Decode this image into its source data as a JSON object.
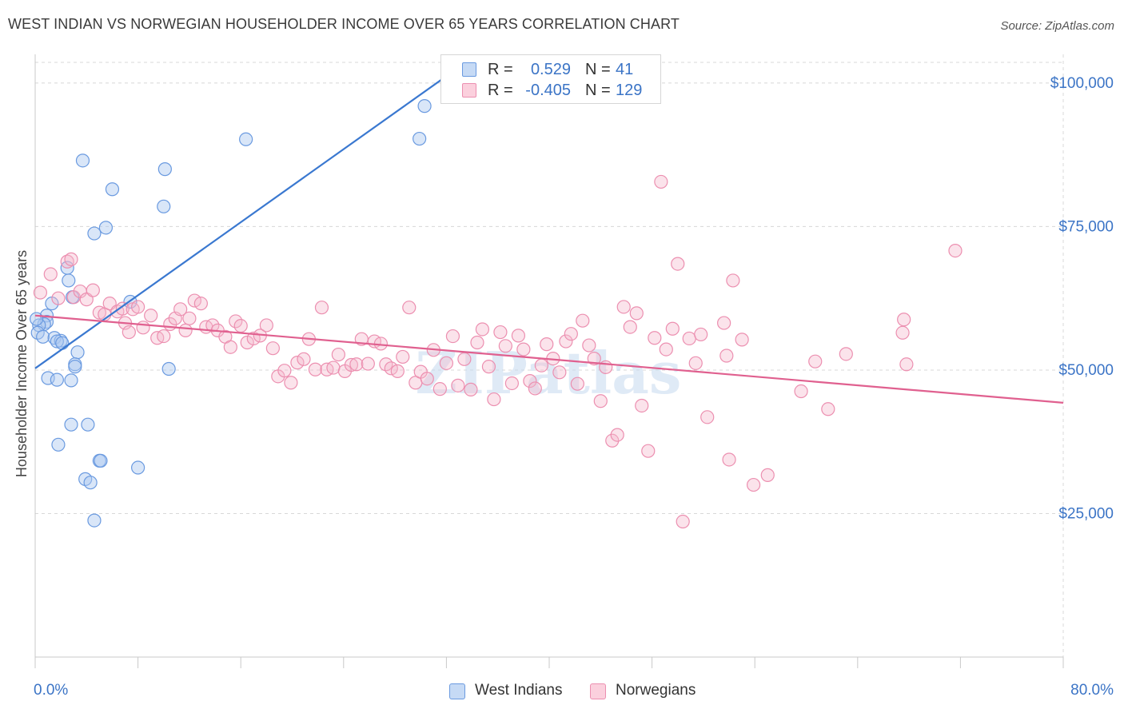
{
  "title": "WEST INDIAN VS NORWEGIAN HOUSEHOLDER INCOME OVER 65 YEARS CORRELATION CHART",
  "source": "Source: ZipAtlas.com",
  "watermark": "ZIPatlas",
  "colors": {
    "blue": "#3a78d0",
    "blue_fill": "#aac8f0",
    "pink": "#e0608f",
    "pink_fill": "#f5b8cc",
    "axis_text": "#3b74c6",
    "grid": "#d8d8d8"
  },
  "legend": {
    "r_label": "R =",
    "n_label": "N =",
    "rows": [
      {
        "r": "0.529",
        "n": "41"
      },
      {
        "r": "-0.405",
        "n": "129"
      }
    ]
  },
  "chart_data": {
    "type": "scatter",
    "title": "WEST INDIAN VS NORWEGIAN HOUSEHOLDER INCOME OVER 65 YEARS CORRELATION CHART",
    "xlabel": "",
    "ylabel": "Householder Income Over 65 years",
    "xlim": [
      0,
      80
    ],
    "ylim": [
      0,
      105000
    ],
    "x_tick_labels": [
      "0.0%",
      "80.0%"
    ],
    "y_ticks": [
      25000,
      50000,
      75000,
      100000
    ],
    "y_tick_labels": [
      "$25,000",
      "$50,000",
      "$75,000",
      "$100,000"
    ],
    "grid": true,
    "legend_position": "top-center",
    "series": [
      {
        "name": "West Indians",
        "r": 0.529,
        "n": 41,
        "trend": {
          "x": [
            0,
            32.5
          ],
          "y": [
            50300,
            102000
          ]
        },
        "points": [
          [
            30.3,
            96000
          ],
          [
            29.9,
            90300
          ],
          [
            16.4,
            90200
          ],
          [
            3.7,
            86500
          ],
          [
            10.1,
            85000
          ],
          [
            6.0,
            81500
          ],
          [
            10.0,
            78500
          ],
          [
            5.5,
            74800
          ],
          [
            4.6,
            73800
          ],
          [
            2.5,
            67800
          ],
          [
            2.6,
            65600
          ],
          [
            2.9,
            62700
          ],
          [
            1.3,
            61600
          ],
          [
            7.4,
            61900
          ],
          [
            0.9,
            59500
          ],
          [
            0.9,
            58400
          ],
          [
            0.7,
            58000
          ],
          [
            0.3,
            57800
          ],
          [
            0.2,
            56500
          ],
          [
            0.6,
            55800
          ],
          [
            1.5,
            55600
          ],
          [
            2.0,
            55100
          ],
          [
            1.7,
            55000
          ],
          [
            2.1,
            54700
          ],
          [
            3.3,
            53100
          ],
          [
            3.1,
            51000
          ],
          [
            3.1,
            50600
          ],
          [
            10.4,
            50200
          ],
          [
            1.0,
            48600
          ],
          [
            1.7,
            48300
          ],
          [
            2.8,
            48200
          ],
          [
            2.8,
            40500
          ],
          [
            4.1,
            40500
          ],
          [
            1.8,
            37000
          ],
          [
            5.0,
            34200
          ],
          [
            5.1,
            34200
          ],
          [
            8.0,
            33000
          ],
          [
            3.9,
            31000
          ],
          [
            4.3,
            30400
          ],
          [
            4.6,
            23800
          ],
          [
            0.1,
            58900
          ]
        ]
      },
      {
        "name": "Norwegians",
        "r": -0.405,
        "n": 129,
        "trend": {
          "x": [
            0,
            80
          ],
          "y": [
            59500,
            44300
          ]
        },
        "points": [
          [
            0.4,
            63500
          ],
          [
            1.2,
            66700
          ],
          [
            1.8,
            62500
          ],
          [
            2.5,
            68900
          ],
          [
            2.8,
            69300
          ],
          [
            3.0,
            62700
          ],
          [
            3.5,
            63700
          ],
          [
            4.0,
            62300
          ],
          [
            4.5,
            63900
          ],
          [
            5.0,
            60000
          ],
          [
            5.4,
            59700
          ],
          [
            5.8,
            61600
          ],
          [
            6.4,
            60200
          ],
          [
            6.8,
            60700
          ],
          [
            7.0,
            58200
          ],
          [
            7.3,
            56600
          ],
          [
            7.6,
            60600
          ],
          [
            8.0,
            61000
          ],
          [
            8.4,
            57400
          ],
          [
            9.0,
            59500
          ],
          [
            9.5,
            55600
          ],
          [
            10.0,
            55900
          ],
          [
            10.5,
            58000
          ],
          [
            10.9,
            59000
          ],
          [
            11.3,
            60600
          ],
          [
            11.7,
            56900
          ],
          [
            12.0,
            59000
          ],
          [
            12.4,
            62100
          ],
          [
            12.9,
            61600
          ],
          [
            13.3,
            57500
          ],
          [
            13.8,
            57800
          ],
          [
            14.2,
            56900
          ],
          [
            14.8,
            55800
          ],
          [
            15.2,
            54000
          ],
          [
            15.6,
            58500
          ],
          [
            16.0,
            57700
          ],
          [
            16.5,
            54800
          ],
          [
            17.0,
            55500
          ],
          [
            17.5,
            56000
          ],
          [
            18.0,
            57800
          ],
          [
            18.5,
            53800
          ],
          [
            18.9,
            48900
          ],
          [
            19.4,
            49900
          ],
          [
            19.9,
            47800
          ],
          [
            20.4,
            51300
          ],
          [
            20.9,
            51900
          ],
          [
            21.3,
            55400
          ],
          [
            21.8,
            50100
          ],
          [
            22.3,
            60900
          ],
          [
            22.7,
            50100
          ],
          [
            23.2,
            50400
          ],
          [
            23.6,
            52700
          ],
          [
            24.1,
            49800
          ],
          [
            24.6,
            50900
          ],
          [
            25.0,
            51000
          ],
          [
            25.4,
            55400
          ],
          [
            25.9,
            51100
          ],
          [
            26.4,
            55000
          ],
          [
            26.9,
            54600
          ],
          [
            27.3,
            51000
          ],
          [
            27.7,
            50300
          ],
          [
            28.2,
            49800
          ],
          [
            28.6,
            52300
          ],
          [
            29.1,
            60900
          ],
          [
            29.6,
            47800
          ],
          [
            30.0,
            49700
          ],
          [
            30.5,
            48500
          ],
          [
            31.0,
            53500
          ],
          [
            31.5,
            46700
          ],
          [
            32.0,
            51200
          ],
          [
            32.5,
            55900
          ],
          [
            32.9,
            47300
          ],
          [
            33.4,
            51900
          ],
          [
            33.9,
            46600
          ],
          [
            34.4,
            54800
          ],
          [
            34.8,
            57100
          ],
          [
            35.3,
            50600
          ],
          [
            35.7,
            44900
          ],
          [
            36.2,
            56600
          ],
          [
            36.6,
            54200
          ],
          [
            37.1,
            47700
          ],
          [
            37.6,
            56000
          ],
          [
            38.0,
            53600
          ],
          [
            38.5,
            48100
          ],
          [
            38.9,
            46800
          ],
          [
            39.4,
            50800
          ],
          [
            39.8,
            54500
          ],
          [
            40.3,
            52000
          ],
          [
            40.8,
            49600
          ],
          [
            41.3,
            55000
          ],
          [
            41.7,
            56300
          ],
          [
            42.2,
            47600
          ],
          [
            42.6,
            58600
          ],
          [
            43.1,
            54300
          ],
          [
            43.5,
            52000
          ],
          [
            44.0,
            44600
          ],
          [
            44.4,
            50500
          ],
          [
            44.9,
            37700
          ],
          [
            45.3,
            38700
          ],
          [
            45.8,
            61000
          ],
          [
            46.3,
            57500
          ],
          [
            46.8,
            59900
          ],
          [
            47.2,
            43800
          ],
          [
            47.7,
            35900
          ],
          [
            48.2,
            55600
          ],
          [
            48.7,
            82800
          ],
          [
            49.1,
            53600
          ],
          [
            49.6,
            57200
          ],
          [
            50.0,
            68500
          ],
          [
            50.4,
            23600
          ],
          [
            50.9,
            55500
          ],
          [
            51.4,
            51200
          ],
          [
            51.8,
            56200
          ],
          [
            52.3,
            41800
          ],
          [
            53.6,
            58200
          ],
          [
            53.8,
            52500
          ],
          [
            54.0,
            34400
          ],
          [
            54.3,
            65600
          ],
          [
            55.0,
            55300
          ],
          [
            55.9,
            30000
          ],
          [
            57.0,
            31700
          ],
          [
            59.6,
            46300
          ],
          [
            60.7,
            51500
          ],
          [
            61.7,
            43200
          ],
          [
            63.1,
            52800
          ],
          [
            67.8,
            51000
          ],
          [
            67.6,
            58800
          ],
          [
            71.6,
            70800
          ],
          [
            67.5,
            56500
          ]
        ]
      }
    ]
  }
}
